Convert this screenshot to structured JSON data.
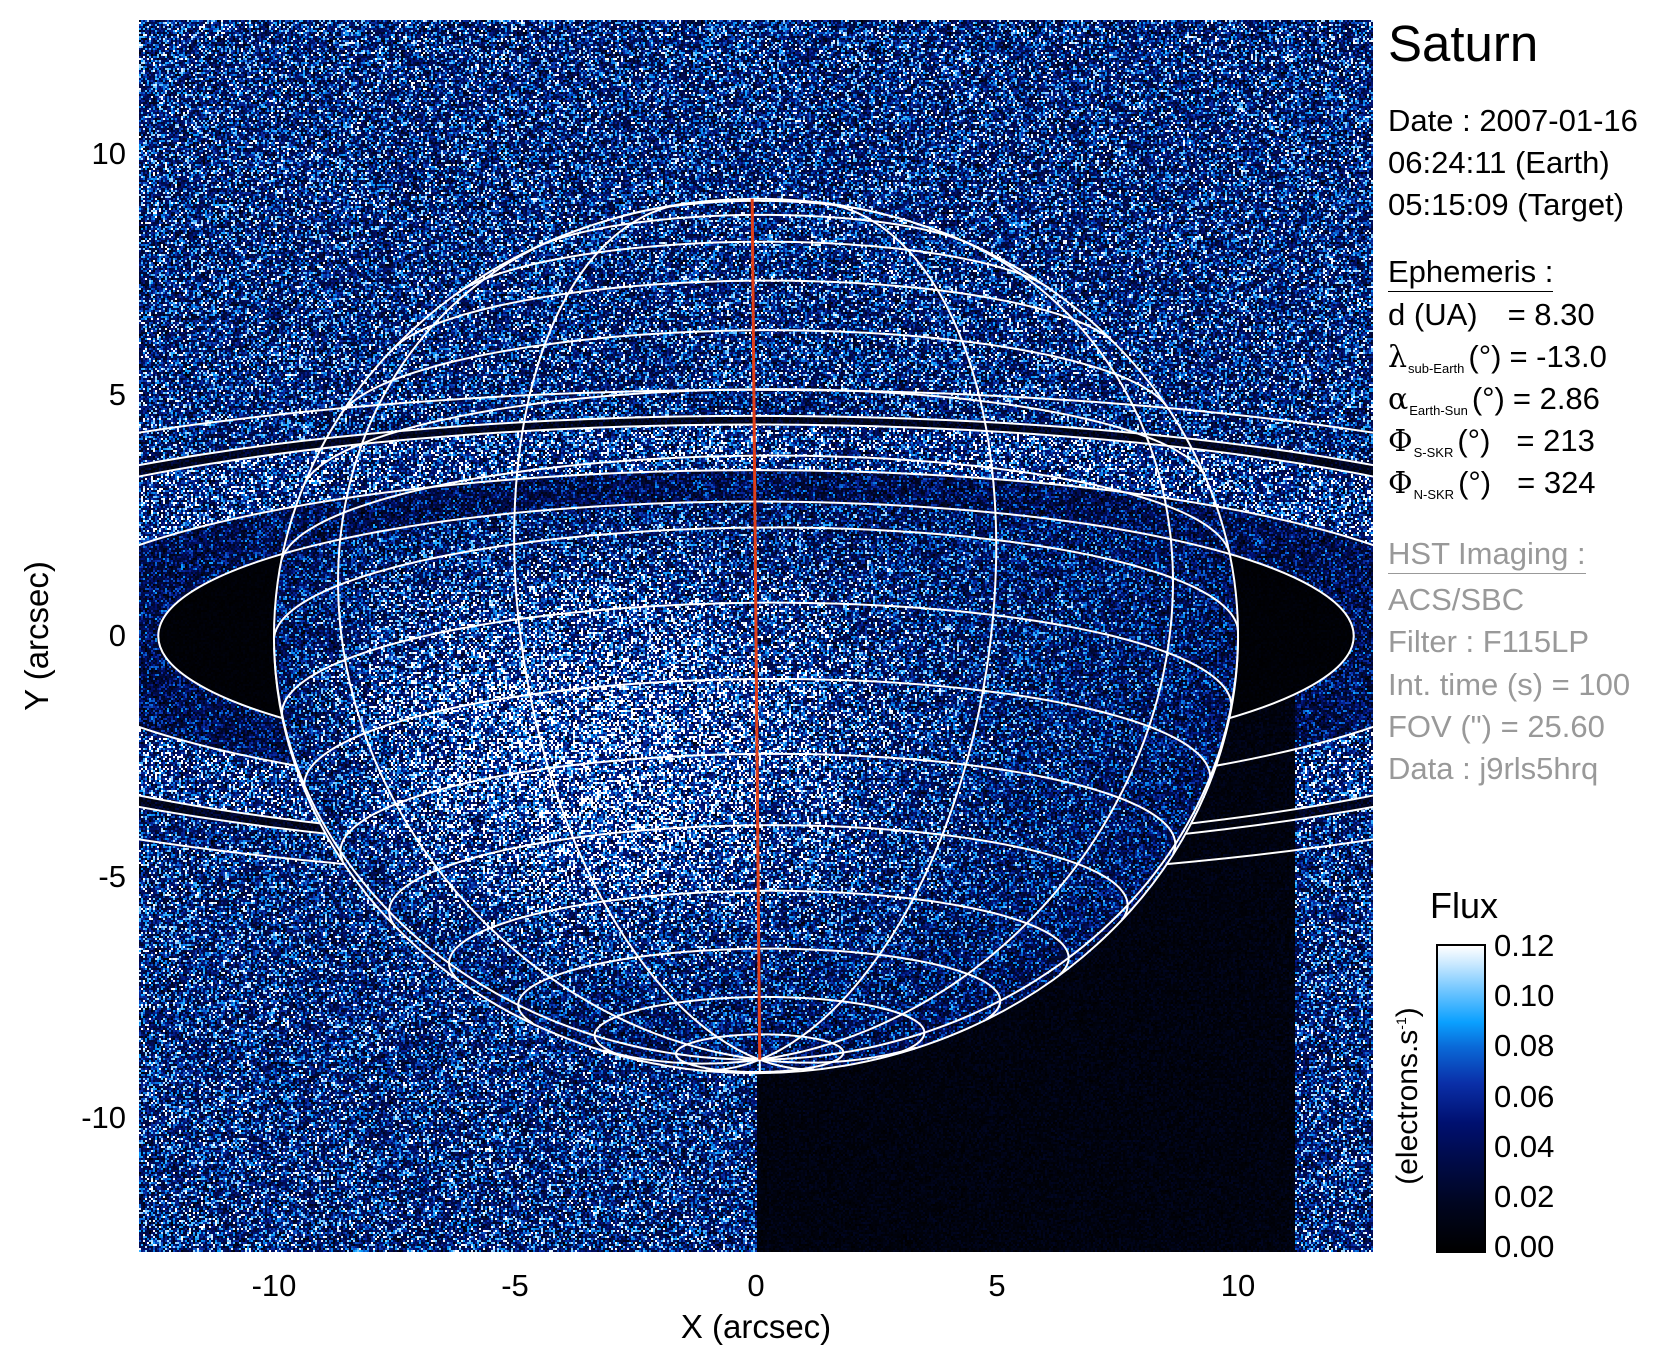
{
  "panel": {
    "title": "Saturn",
    "date_lines": [
      "Date : 2007-01-16",
      "06:24:11 (Earth)",
      "05:15:09 (Target)"
    ],
    "ephemeris_header": "Ephemeris :",
    "ephemeris": [
      {
        "symbol": "d",
        "sub": "",
        "unit": "(UA)",
        "value": "= 8.30"
      },
      {
        "symbol": "λ",
        "sub": "sub-Earth",
        "unit": "(°)",
        "value": "= -13.0"
      },
      {
        "symbol": "α",
        "sub": "Earth-Sun",
        "unit": "(°)",
        "value": "= 2.86"
      },
      {
        "symbol": "Φ",
        "sub": "S-SKR",
        "unit": "(°)",
        "value": "= 213"
      },
      {
        "symbol": "Φ",
        "sub": "N-SKR",
        "unit": "(°)",
        "value": "= 324"
      }
    ],
    "imaging_header": "HST Imaging :",
    "imaging": [
      "ACS/SBC",
      "Filter : F115LP",
      "Int. time (s) = 100",
      "FOV (\") = 25.60",
      "Data : j9rls5hrq"
    ],
    "text_color": "#000000",
    "imaging_color": "#999999"
  },
  "colorbar": {
    "title": "Flux",
    "unit_main": "(electrons.s",
    "unit_sup": "-1",
    "unit_close": ")",
    "ticks": [
      "0.00",
      "0.02",
      "0.04",
      "0.06",
      "0.08",
      "0.10",
      "0.12"
    ],
    "range": [
      0.0,
      0.12
    ],
    "colormap": [
      "#000000",
      "#000b4a",
      "#0a2fa8",
      "#0aa0ff",
      "#ffffff"
    ]
  },
  "chart_data": {
    "type": "heatmap",
    "title": "Saturn",
    "xlabel": "X (arcsec)",
    "ylabel": "Y (arcsec)",
    "xlim": [
      -12.8,
      12.8
    ],
    "ylim": [
      -12.8,
      12.8
    ],
    "xticks": [
      "-10",
      "-5",
      "0",
      "5",
      "10"
    ],
    "yticks": [
      "10",
      "5",
      "0",
      "-5",
      "-10"
    ],
    "value_label": "Flux (electrons.s-1)",
    "value_range": [
      0.0,
      0.12
    ],
    "overlay": {
      "planet_grid": {
        "lat_step_deg": 10,
        "lon_step_deg": 30,
        "color": "#ffffff"
      },
      "central_meridian_color": "#e0401a",
      "ring_edges_saturn_radii": [
        1.24,
        1.53,
        1.95,
        2.03,
        2.27
      ],
      "sub_observer_latitude_deg": -13.0
    }
  }
}
